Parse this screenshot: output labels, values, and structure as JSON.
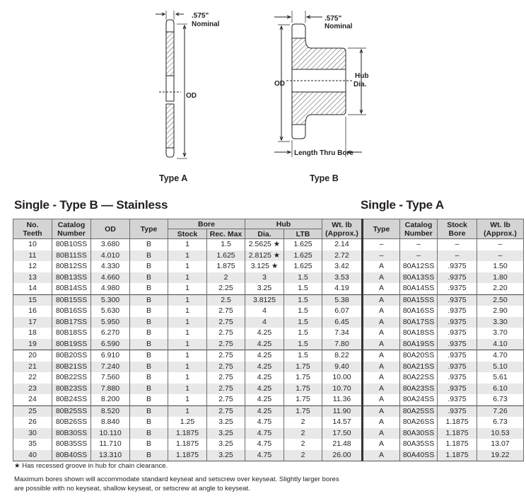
{
  "diagrams": {
    "type_a": {
      "caption": "Type A",
      "thickness": ".575\"",
      "thickness_note": "Nominal",
      "od_label": "OD"
    },
    "type_b": {
      "caption": "Type B",
      "thickness": ".575\"",
      "thickness_note": "Nominal",
      "od_label": "OD",
      "hub_label_1": "Hub",
      "hub_label_2": "Dia.",
      "ltb_label": "Length Thru Bore"
    }
  },
  "sections": {
    "type_b_title": "Single - Type B — Stainless",
    "type_a_title": "Single - Type A"
  },
  "table": {
    "headers": {
      "teeth": [
        "No.",
        "Teeth"
      ],
      "catalog": [
        "Catalog",
        "Number"
      ],
      "od": "OD",
      "type": "Type",
      "bore": "Bore",
      "stock": "Stock",
      "rec_max": "Rec. Max",
      "hub": "Hub",
      "dia": "Dia.",
      "ltb": "LTB",
      "wt": [
        "Wt. lb",
        "(Approx.)"
      ],
      "a_type": "Type",
      "a_catalog": [
        "Catalog",
        "Number"
      ],
      "a_stock": [
        "Stock",
        "Bore"
      ],
      "a_wt": [
        "Wt. lb",
        "(Approx.)"
      ]
    },
    "star_symbol": "★",
    "rows": [
      [
        "10",
        "80B10SS",
        "3.680",
        "B",
        "1",
        "1.5",
        "2.5625 ★",
        "1.625",
        "2.14",
        "–",
        "–",
        "–",
        "–"
      ],
      [
        "11",
        "80B11SS",
        "4.010",
        "B",
        "1",
        "1.625",
        "2.8125 ★",
        "1.625",
        "2.72",
        "–",
        "–",
        "–",
        "–"
      ],
      [
        "12",
        "80B12SS",
        "4.330",
        "B",
        "1",
        "1.875",
        "3.125 ★",
        "1.625",
        "3.42",
        "A",
        "80A12SS",
        ".9375",
        "1.50"
      ],
      [
        "13",
        "80B13SS",
        "4.660",
        "B",
        "1",
        "2",
        "3",
        "1.5",
        "3.53",
        "A",
        "80A13SS",
        ".9375",
        "1.80"
      ],
      [
        "14",
        "80B14SS",
        "4.980",
        "B",
        "1",
        "2.25",
        "3.25",
        "1.5",
        "4.19",
        "A",
        "80A14SS",
        ".9375",
        "2.20"
      ],
      [
        "15",
        "80B15SS",
        "5.300",
        "B",
        "1",
        "2.5",
        "3.8125",
        "1.5",
        "5.38",
        "A",
        "80A15SS",
        ".9375",
        "2.50"
      ],
      [
        "16",
        "80B16SS",
        "5.630",
        "B",
        "1",
        "2.75",
        "4",
        "1.5",
        "6.07",
        "A",
        "80A16SS",
        ".9375",
        "2.90"
      ],
      [
        "17",
        "80B17SS",
        "5.950",
        "B",
        "1",
        "2.75",
        "4",
        "1.5",
        "6.45",
        "A",
        "80A17SS",
        ".9375",
        "3.30"
      ],
      [
        "18",
        "80B18SS",
        "6.270",
        "B",
        "1",
        "2.75",
        "4.25",
        "1.5",
        "7.34",
        "A",
        "80A18SS",
        ".9375",
        "3.70"
      ],
      [
        "19",
        "80B19SS",
        "6.590",
        "B",
        "1",
        "2.75",
        "4.25",
        "1.5",
        "7.80",
        "A",
        "80A19SS",
        ".9375",
        "4.10"
      ],
      [
        "20",
        "80B20SS",
        "6.910",
        "B",
        "1",
        "2.75",
        "4.25",
        "1.5",
        "8.22",
        "A",
        "80A20SS",
        ".9375",
        "4.70"
      ],
      [
        "21",
        "80B21SS",
        "7.240",
        "B",
        "1",
        "2.75",
        "4.25",
        "1.75",
        "9.40",
        "A",
        "80A21SS",
        ".9375",
        "5.10"
      ],
      [
        "22",
        "80B22SS",
        "7.560",
        "B",
        "1",
        "2.75",
        "4.25",
        "1.75",
        "10.00",
        "A",
        "80A22SS",
        ".9375",
        "5.61"
      ],
      [
        "23",
        "80B23SS",
        "7.880",
        "B",
        "1",
        "2.75",
        "4.25",
        "1.75",
        "10.70",
        "A",
        "80A23SS",
        ".9375",
        "6.10"
      ],
      [
        "24",
        "80B24SS",
        "8.200",
        "B",
        "1",
        "2.75",
        "4.25",
        "1.75",
        "11.36",
        "A",
        "80A24SS",
        ".9375",
        "6.73"
      ],
      [
        "25",
        "80B25SS",
        "8.520",
        "B",
        "1",
        "2.75",
        "4.25",
        "1.75",
        "11.90",
        "A",
        "80A25SS",
        ".9375",
        "7.26"
      ],
      [
        "26",
        "80B26SS",
        "8.840",
        "B",
        "1.25",
        "3.25",
        "4.75",
        "2",
        "14.57",
        "A",
        "80A26SS",
        "1.1875",
        "6.73"
      ],
      [
        "30",
        "80B30SS",
        "10.110",
        "B",
        "1.1875",
        "3.25",
        "4.75",
        "2",
        "17.50",
        "A",
        "80A30SS",
        "1.1875",
        "10.53"
      ],
      [
        "35",
        "80B35SS",
        "11.710",
        "B",
        "1.1875",
        "3.25",
        "4.75",
        "2",
        "21.48",
        "A",
        "80A35SS",
        "1.1875",
        "13.07"
      ],
      [
        "40",
        "80B40SS",
        "13.310",
        "B",
        "1.1875",
        "3.25",
        "4.75",
        "2",
        "26.00",
        "A",
        "80A40SS",
        "1.1875",
        "19.22"
      ]
    ]
  },
  "notes": {
    "star_note": "★ Has recessed groove in hub for chain clearance.",
    "bore_note_1": "Maximum bores shown will accommodate standard keyseat and setscrew over keyseat. Slightly larger bores",
    "bore_note_2": "are possible with no keyseat, shallow keyseat, or setscrew at angle to keyseat."
  },
  "colors": {
    "header_bg": "#d4d4d4",
    "stripe_bg": "#e8e8e9",
    "text": "#231f20"
  }
}
